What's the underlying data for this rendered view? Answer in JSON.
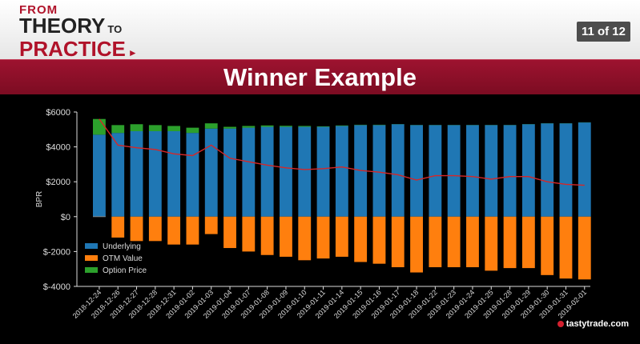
{
  "header": {
    "logo_from": "FROM",
    "logo_theory": "THEORY",
    "logo_to": "TO",
    "logo_practice": "PRACTICE",
    "page_indicator": "11 of 12"
  },
  "banner": {
    "title": "Winner Example"
  },
  "brand": {
    "label": "tastytrade.com"
  },
  "colors": {
    "underlying": "#1f77b4",
    "otm": "#ff7f0e",
    "option": "#2ca02c",
    "line": "#d62728",
    "banner": "#8b0f2a"
  },
  "chart_data": {
    "type": "bar",
    "ylabel": "BPR",
    "ylim": [
      -4000,
      6000
    ],
    "yticks": [
      6000,
      4000,
      2000,
      0,
      -2000,
      -4000
    ],
    "ytick_labels": [
      "$6000",
      "$4000",
      "$2000",
      "$0",
      "$-2000",
      "$-4000"
    ],
    "legend_position": "lower-left",
    "categories": [
      "2018-12-24",
      "2018-12-26",
      "2018-12-27",
      "2018-12-28",
      "2018-12-31",
      "2019-01-02",
      "2019-01-03",
      "2019-01-04",
      "2019-01-07",
      "2019-01-08",
      "2019-01-09",
      "2019-01-10",
      "2019-01-11",
      "2019-01-14",
      "2019-01-15",
      "2019-01-16",
      "2019-01-17",
      "2019-01-18",
      "2019-01-22",
      "2019-01-23",
      "2019-01-24",
      "2019-01-25",
      "2019-01-28",
      "2019-01-29",
      "2019-01-30",
      "2019-01-31",
      "2019-02-01"
    ],
    "series": [
      {
        "name": "Underlying",
        "values": [
          4700,
          4800,
          4900,
          4900,
          4900,
          4800,
          5050,
          5050,
          5100,
          5150,
          5150,
          5150,
          5150,
          5200,
          5250,
          5250,
          5300,
          5250,
          5250,
          5250,
          5250,
          5250,
          5250,
          5300,
          5350,
          5350,
          5400
        ]
      },
      {
        "name": "OTM Value",
        "values": [
          0,
          -1200,
          -1400,
          -1400,
          -1600,
          -1600,
          -1000,
          -1800,
          -2000,
          -2200,
          -2300,
          -2500,
          -2400,
          -2300,
          -2600,
          -2700,
          -2900,
          -3200,
          -2900,
          -2900,
          -2900,
          -3100,
          -2950,
          -2950,
          -3350,
          -3550,
          -3600
        ]
      },
      {
        "name": "Option Price",
        "values": [
          900,
          450,
          400,
          350,
          300,
          300,
          300,
          100,
          100,
          80,
          60,
          50,
          30,
          30,
          20,
          20,
          10,
          10,
          10,
          10,
          10,
          10,
          10,
          10,
          10,
          10,
          10
        ]
      }
    ],
    "line": {
      "values": [
        5600,
        4100,
        3950,
        3850,
        3600,
        3500,
        4100,
        3350,
        3150,
        2950,
        2800,
        2700,
        2750,
        2850,
        2650,
        2550,
        2400,
        2100,
        2350,
        2350,
        2300,
        2150,
        2300,
        2300,
        2000,
        1850,
        1800
      ]
    }
  }
}
